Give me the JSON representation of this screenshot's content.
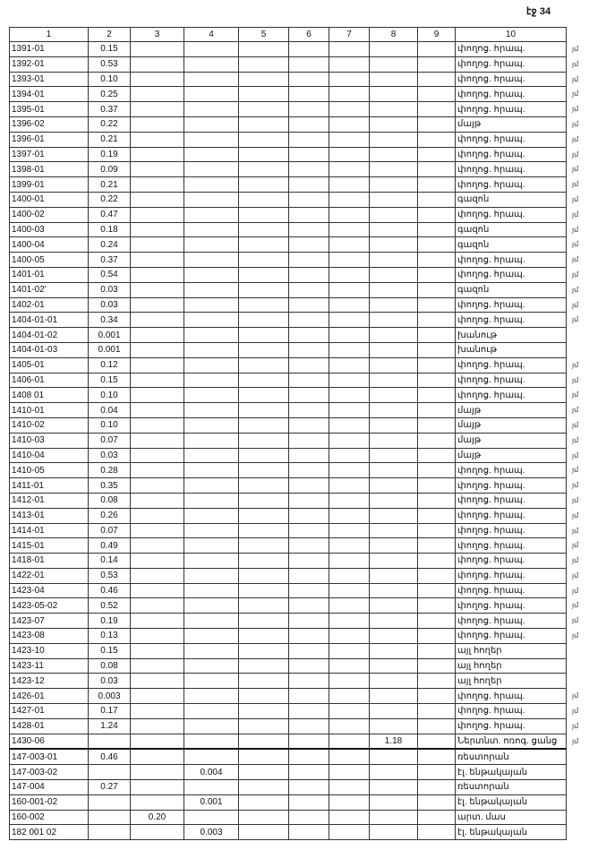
{
  "page_label": "էջ 34",
  "columns": [
    "1",
    "2",
    "3",
    "4",
    "5",
    "6",
    "7",
    "8",
    "9",
    "10"
  ],
  "rows": [
    {
      "id": "1391-01",
      "c2": "0.15",
      "c10": "փողոց. հրապ.",
      "m": "յմ"
    },
    {
      "id": "1392-01",
      "c2": "0.53",
      "c10": "փողոց. հրապ.",
      "m": "յմ"
    },
    {
      "id": "1393-01",
      "c2": "0.10",
      "c10": "փողոց. հրապ.",
      "m": "յմ"
    },
    {
      "id": "1394-01",
      "c2": "0.25",
      "c10": "փողոց. հրապ.",
      "m": "յմ"
    },
    {
      "id": "1395-01",
      "c2": "0.37",
      "c10": "փողոց. հրապ.",
      "m": "յմ"
    },
    {
      "id": "1396-02",
      "c2": "0.22",
      "c10": "մայթ",
      "m": "յմ"
    },
    {
      "id": "1396-01",
      "c2": "0.21",
      "c10": "փողոց. հրապ.",
      "m": "յմ"
    },
    {
      "id": "1397-01",
      "c2": "0.19",
      "c10": "փողոց. հրապ.",
      "m": "յմ"
    },
    {
      "id": "1398-01",
      "c2": "0.09",
      "c10": "փողոց. հրապ.",
      "m": "յմ"
    },
    {
      "id": "1399-01",
      "c2": "0.21",
      "c10": "փողոց. հրապ.",
      "m": "յմ"
    },
    {
      "id": "1400-01",
      "c2": "0.22",
      "c10": "գազոն",
      "m": "յմ"
    },
    {
      "id": "1400-02",
      "c2": "0.47",
      "c10": "փողոց. հրապ.",
      "m": "յմ"
    },
    {
      "id": "1400-03",
      "c2": "0.18",
      "c10": "գազոն",
      "m": "յմ"
    },
    {
      "id": "1400-04",
      "c2": "0.24",
      "c10": "գազոն",
      "m": "յմ"
    },
    {
      "id": "1400-05",
      "c2": "0.37",
      "c10": "փողոց. հրապ.",
      "m": "յմ"
    },
    {
      "id": "1401-01",
      "c2": "0.54",
      "c10": "փողոց. հրապ.",
      "m": "յմ"
    },
    {
      "id": "1401-02'",
      "c2": "0.03",
      "c10": "գազոն",
      "m": "յմ"
    },
    {
      "id": "1402-01",
      "c2": "0.03",
      "c10": "փողոց. հրապ.",
      "m": "յմ"
    },
    {
      "id": "1404-01-01",
      "c2": "0.34",
      "c10": "փողոց. հրապ.",
      "m": "յմ"
    },
    {
      "id": "1404-01-02",
      "c2": "0.001",
      "c10": "խանութ"
    },
    {
      "id": "1404-01-03",
      "c2": "0.001",
      "c10": "խանութ"
    },
    {
      "id": "1405-01",
      "c2": "0.12",
      "c10": "փողոց. հրապ.",
      "m": "յմ"
    },
    {
      "id": "1406-01",
      "c2": "0.15",
      "c10": "փողոց. հրապ.",
      "m": "յմ"
    },
    {
      "id": "1408 01",
      "c2": "0.10",
      "c10": "փողոց. հրապ.",
      "m": "յմ"
    },
    {
      "id": "1410-01",
      "c2": "0.04",
      "c10": "մայթ",
      "m": "յմ"
    },
    {
      "id": "1410-02",
      "c2": "0.10",
      "c10": "մայթ",
      "m": "յմ"
    },
    {
      "id": "1410-03",
      "c2": "0.07",
      "c10": "մայթ",
      "m": "յմ"
    },
    {
      "id": "1410-04",
      "c2": "0.03",
      "c10": "մայթ",
      "m": "յմ"
    },
    {
      "id": "1410-05",
      "c2": "0.28",
      "c10": "փողոց. հրապ.",
      "m": "յմ"
    },
    {
      "id": "1411-01",
      "c2": "0.35",
      "c10": "փողոց. հրապ.",
      "m": "յմ"
    },
    {
      "id": "1412-01",
      "c2": "0.08",
      "c10": "փողոց. հրապ.",
      "m": "յմ"
    },
    {
      "id": "1413-01",
      "c2": "0.26",
      "c10": "փողոց. հրապ.",
      "m": "յմ"
    },
    {
      "id": "1414-01",
      "c2": "0.07",
      "c10": "փողոց. հրապ.",
      "m": "յմ"
    },
    {
      "id": "1415-01",
      "c2": "0.49",
      "c10": "փողոց. հրապ.",
      "m": "յմ"
    },
    {
      "id": "1418-01",
      "c2": "0.14",
      "c10": "փողոց. հրապ.",
      "m": "յմ"
    },
    {
      "id": "1422-01",
      "c2": "0.53",
      "c10": "փողոց. հրապ.",
      "m": "յմ"
    },
    {
      "id": "1423-04",
      "c2": "0.46",
      "c10": "փողոց. հրապ.",
      "m": "յմ"
    },
    {
      "id": "1423-05-02",
      "c2": "0.52",
      "c10": "փողոց. հրապ.",
      "m": "յմ"
    },
    {
      "id": "1423-07",
      "c2": "0.19",
      "c10": "փողոց. հրապ.",
      "m": "յմ"
    },
    {
      "id": "1423-08",
      "c2": "0.13",
      "c10": "փողոց. հրապ.",
      "m": "յմ"
    },
    {
      "id": "1423-10",
      "c2": "0.15",
      "c10": "այլ հողեր"
    },
    {
      "id": "1423-11",
      "c2": "0.08",
      "c10": "այլ հողեր"
    },
    {
      "id": "1423-12",
      "c2": "0.03",
      "c10": "այլ հողեր"
    },
    {
      "id": "1426-01",
      "c2": "0.003",
      "c10": "փողոց. հրապ.",
      "m": "յմ"
    },
    {
      "id": "1427-01",
      "c2": "0.17",
      "c10": "փողոց. հրապ.",
      "m": "յմ"
    },
    {
      "id": "1428-01",
      "c2": "1.24",
      "c10": "փողոց. հրապ.",
      "m": "յմ"
    },
    {
      "id": "1430-06",
      "c8": "1.18",
      "c10": "Ներտնտ. ոռոգ. ցանց",
      "m": "յմ"
    },
    {
      "id": "147-003-01",
      "c2": "0.46",
      "c10": "ռեստորան"
    },
    {
      "id": "147-003-02",
      "c4": "0.004",
      "c10": "էլ. ենթակայան"
    },
    {
      "id": "147-004",
      "c2": "0.27",
      "c10": "ռեստորան"
    },
    {
      "id": "160-001-02",
      "c4": "0.001",
      "c10": "էլ. ենթակայան"
    },
    {
      "id": "160-002",
      "c3": "0.20",
      "c10": "արտ. մաս"
    },
    {
      "id": "182 001 02",
      "c4": "0.003",
      "c10": "էլ. ենթակայան"
    }
  ]
}
